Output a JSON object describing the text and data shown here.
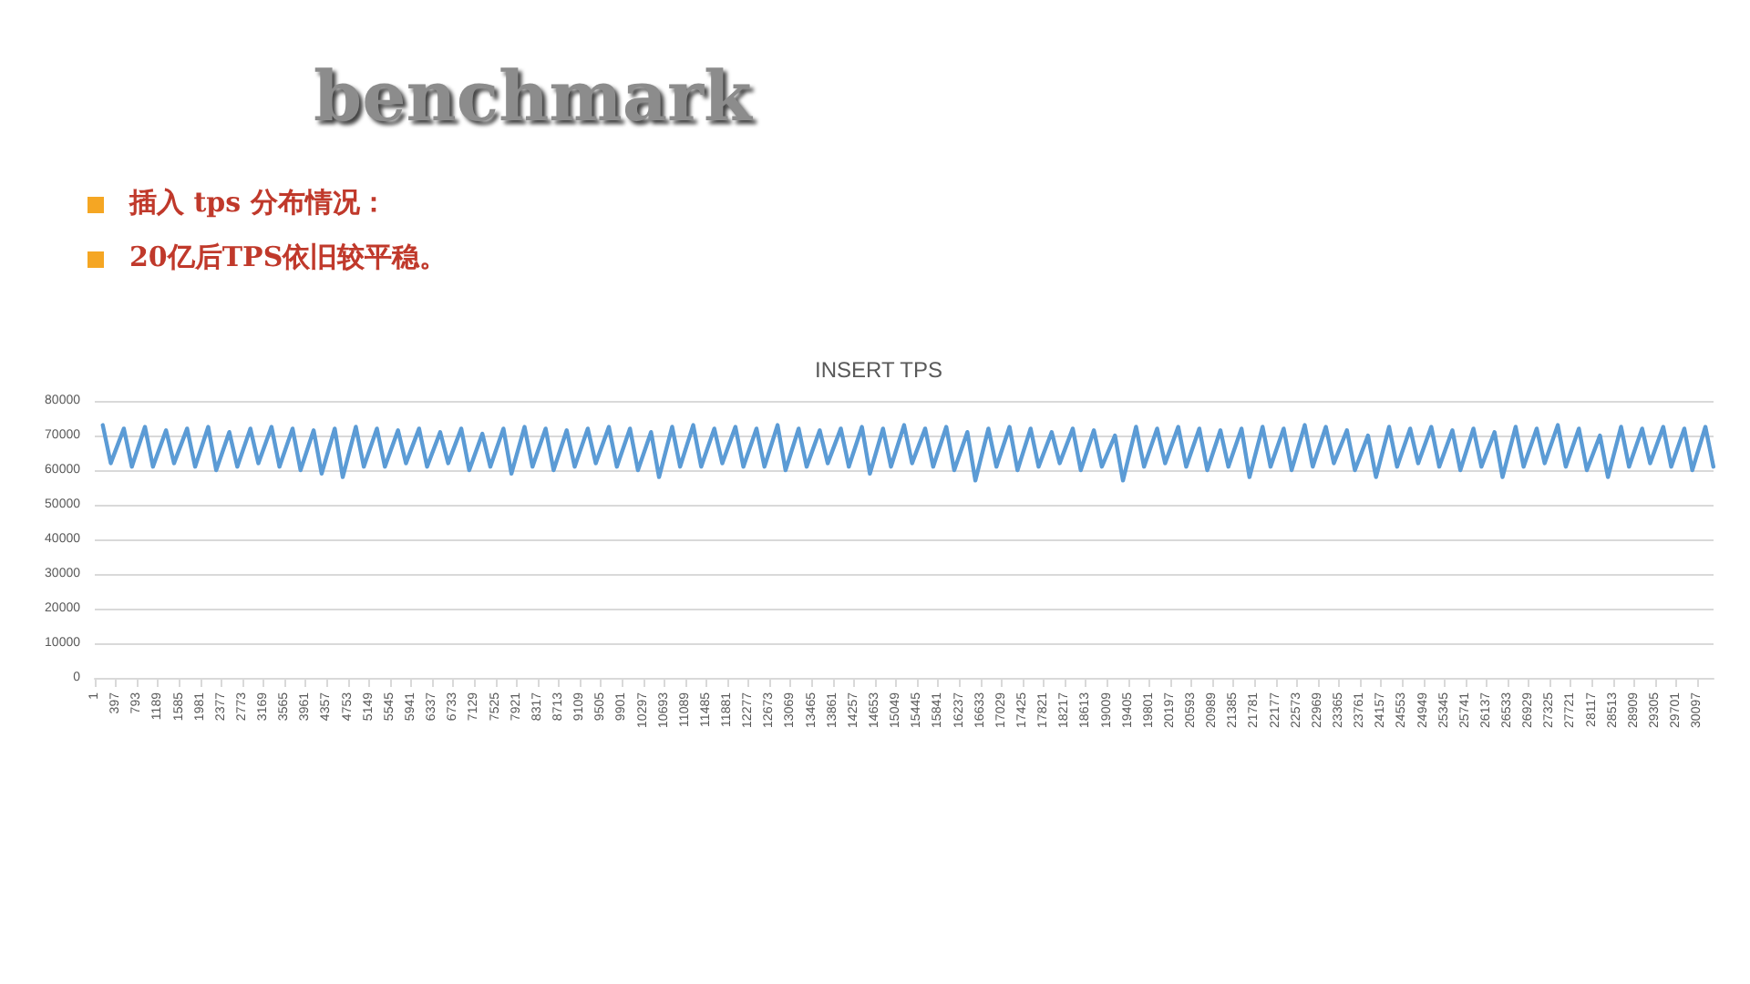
{
  "chart_data": {
    "type": "line",
    "title": "INSERT TPS",
    "annotations": [
      "benchmark",
      "插入 tps 分布情况：",
      "20亿后TPS依旧较平稳。"
    ],
    "x": [
      151,
      301,
      547,
      697,
      943,
      1093,
      1339,
      1489,
      1735,
      1885,
      2131,
      2281,
      2527,
      2677,
      2923,
      3073,
      3319,
      3469,
      3715,
      3865,
      4111,
      4261,
      4507,
      4657,
      4903,
      5053,
      5299,
      5449,
      5695,
      5845,
      6091,
      6241,
      6487,
      6637,
      6883,
      7033,
      7279,
      7429,
      7675,
      7825,
      8071,
      8221,
      8467,
      8617,
      8863,
      9013,
      9259,
      9409,
      9655,
      9805,
      10051,
      10201,
      10447,
      10597,
      10843,
      10993,
      11239,
      11389,
      11635,
      11785,
      12031,
      12181,
      12427,
      12577,
      12823,
      12973,
      13219,
      13369,
      13615,
      13765,
      14011,
      14161,
      14407,
      14557,
      14803,
      14953,
      15199,
      15349,
      15595,
      15745,
      15991,
      16141,
      16387,
      16537,
      16783,
      16933,
      17179,
      17329,
      17575,
      17725,
      17971,
      18121,
      18367,
      18517,
      18763,
      18913,
      19159,
      19309,
      19555,
      19705,
      19951,
      20101,
      20347,
      20497,
      20743,
      20893,
      21139,
      21289,
      21535,
      21685,
      21931,
      22081,
      22327,
      22477,
      22723,
      22873,
      23119,
      23269,
      23515,
      23665,
      23911,
      24061,
      24307,
      24457,
      24703,
      24853,
      25099,
      25249,
      25495,
      25645,
      25891,
      26041,
      26287,
      26437,
      26683,
      26833,
      27079,
      27229,
      27475,
      27625,
      27871,
      28021,
      28267,
      28417,
      28663,
      28813,
      29059,
      29209,
      29455,
      29605,
      29851,
      30001,
      30247,
      30397
    ],
    "series": [
      {
        "color": "#5b9bd5",
        "values": [
          73000,
          62000,
          72000,
          61000,
          72500,
          61000,
          71500,
          62000,
          72000,
          61000,
          72500,
          60000,
          71000,
          61000,
          72000,
          62000,
          72500,
          61000,
          72000,
          60000,
          71500,
          59000,
          72000,
          58000,
          72500,
          61000,
          72000,
          61000,
          71500,
          62000,
          72000,
          61000,
          71000,
          62000,
          72000,
          60000,
          70500,
          61000,
          72000,
          59000,
          72500,
          61000,
          72000,
          60000,
          71500,
          61000,
          72000,
          62000,
          72500,
          61000,
          72000,
          60000,
          71000,
          58000,
          72500,
          61000,
          73000,
          61000,
          72000,
          62000,
          72500,
          61000,
          72000,
          61000,
          73000,
          60000,
          72000,
          61000,
          71500,
          62000,
          72000,
          61000,
          72500,
          59000,
          72000,
          61000,
          73000,
          62000,
          72000,
          61000,
          72500,
          60000,
          71000,
          57000,
          72000,
          61000,
          72500,
          60000,
          72000,
          61000,
          71000,
          62000,
          72000,
          60000,
          71500,
          61000,
          70000,
          57000,
          72500,
          61000,
          72000,
          62000,
          72500,
          61000,
          72000,
          60000,
          71500,
          61000,
          72000,
          58000,
          72500,
          61000,
          72000,
          60000,
          73000,
          61000,
          72500,
          62000,
          71500,
          60000,
          70000,
          58000,
          72500,
          61000,
          72000,
          62000,
          72500,
          61000,
          71500,
          60000,
          72000,
          61000,
          71000,
          58000,
          72500,
          61000,
          72000,
          62000,
          73000,
          61000,
          72000,
          60000,
          70000,
          58000,
          72500,
          61000,
          72000,
          62000,
          72500,
          61000,
          72000,
          60000,
          72500,
          61000
        ]
      }
    ],
    "xlim": [
      1,
      30400
    ],
    "xticks": [
      1,
      397,
      793,
      1189,
      1585,
      1981,
      2377,
      2773,
      3169,
      3565,
      3961,
      4357,
      4753,
      5149,
      5545,
      5941,
      6337,
      6733,
      7129,
      7525,
      7921,
      8317,
      8713,
      9109,
      9505,
      9901,
      10297,
      10693,
      11089,
      11485,
      11881,
      12277,
      12673,
      13069,
      13465,
      13861,
      14257,
      14653,
      15049,
      15445,
      15841,
      16237,
      16633,
      17029,
      17425,
      17821,
      18217,
      18613,
      19009,
      19405,
      19801,
      20197,
      20593,
      20989,
      21385,
      21781,
      22177,
      22573,
      22969,
      23365,
      23761,
      24157,
      24553,
      24949,
      25345,
      25741,
      26137,
      26533,
      26929,
      27325,
      27721,
      28117,
      28513,
      28909,
      29305,
      29701,
      30097
    ],
    "ylim": [
      0,
      80000
    ],
    "yticks": [
      0,
      10000,
      20000,
      30000,
      40000,
      50000,
      60000,
      70000,
      80000
    ],
    "grid": "y",
    "marker": "none",
    "line_style": "solid"
  }
}
